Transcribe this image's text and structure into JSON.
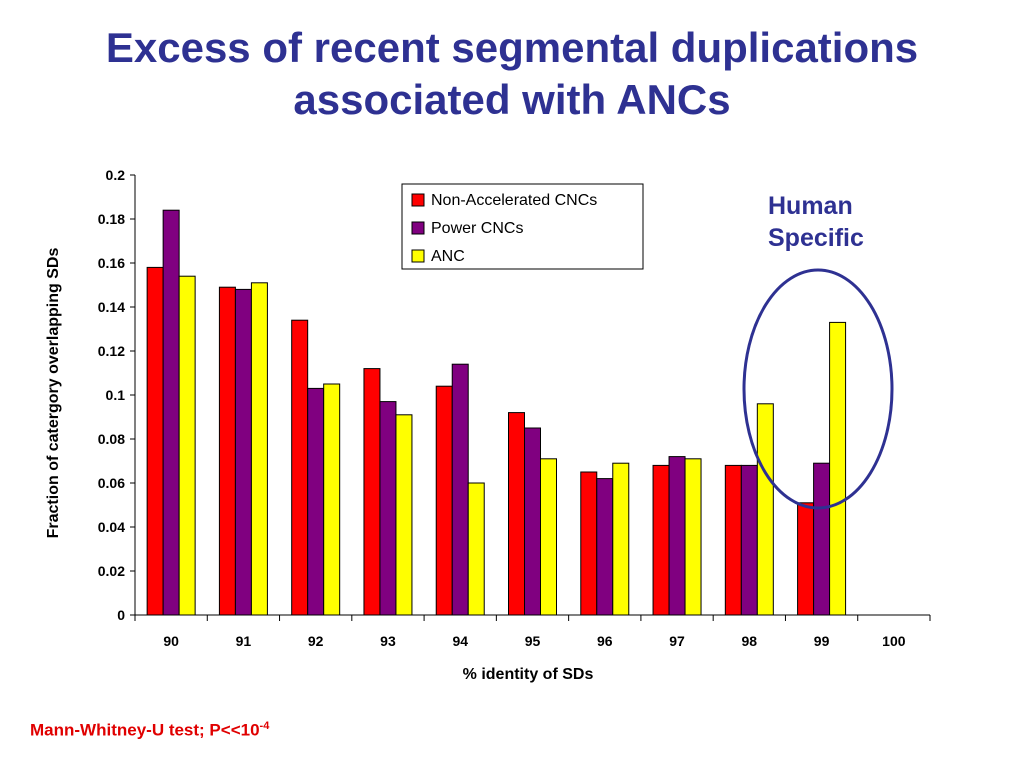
{
  "title": {
    "line1": "Excess of recent segmental duplications",
    "line2": "associated with ANCs"
  },
  "footnote": {
    "text": "Mann-Whitney-U test; P<<10",
    "exponent": "-4"
  },
  "annotation": {
    "line1": "Human",
    "line2": "Specific"
  },
  "colors": {
    "title": "#2e3192",
    "footnote": "#e00000",
    "annotation": "#2e3192",
    "ellipse": "#2e3192"
  },
  "chart_data": {
    "type": "bar",
    "title": "",
    "xlabel": "% identity of SDs",
    "ylabel": "Fraction of catergory overlapping SDs",
    "categories": [
      "90",
      "91",
      "92",
      "93",
      "94",
      "95",
      "96",
      "97",
      "98",
      "99",
      "100"
    ],
    "ylim": [
      0,
      0.2
    ],
    "yticks": [
      "0",
      "0.02",
      "0.04",
      "0.06",
      "0.08",
      "0.1",
      "0.12",
      "0.14",
      "0.16",
      "0.18",
      "0.2"
    ],
    "grid": false,
    "legend_position": "top-right",
    "series": [
      {
        "name": "Non-Accelerated CNCs",
        "color": "#ff0000",
        "values": [
          0.158,
          0.149,
          0.134,
          0.112,
          0.104,
          0.092,
          0.065,
          0.068,
          0.068,
          0.051,
          null
        ]
      },
      {
        "name": "Power CNCs",
        "color": "#800080",
        "values": [
          0.184,
          0.148,
          0.103,
          0.097,
          0.114,
          0.085,
          0.062,
          0.072,
          0.068,
          0.069,
          null
        ]
      },
      {
        "name": "ANC",
        "color": "#ffff00",
        "values": [
          0.154,
          0.151,
          0.105,
          0.091,
          0.06,
          0.071,
          0.069,
          0.071,
          0.096,
          0.133,
          null
        ]
      }
    ]
  }
}
